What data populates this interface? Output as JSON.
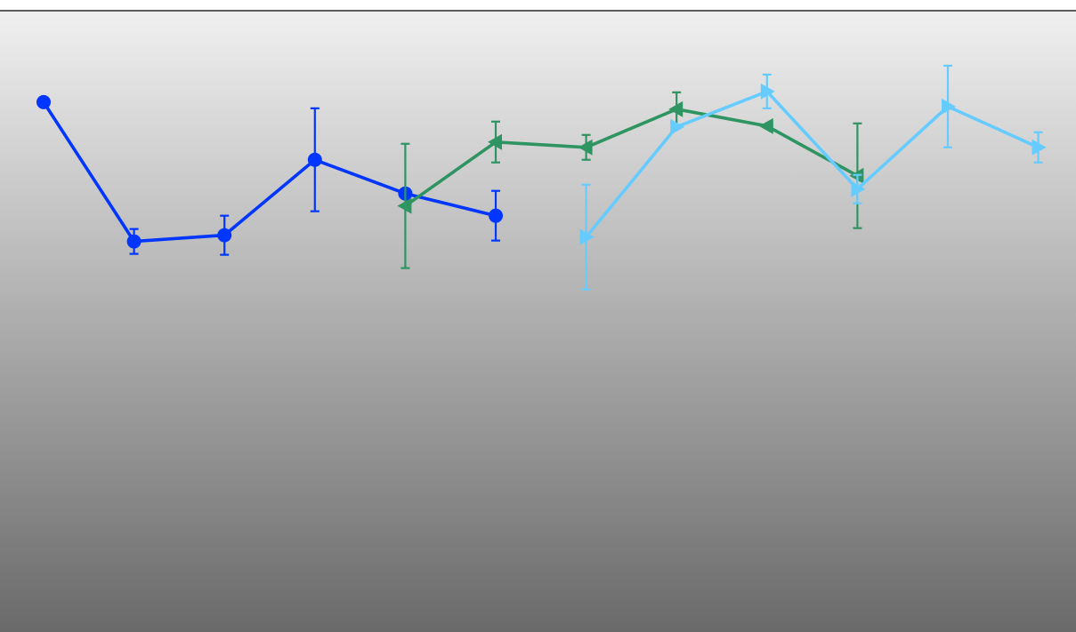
{
  "chart_data": {
    "type": "line",
    "title": "",
    "xlabel": "",
    "ylabel": "",
    "x": [
      0,
      1,
      2,
      3,
      4,
      5,
      6,
      7,
      8,
      9,
      10,
      11
    ],
    "xlim": [
      0,
      11.3
    ],
    "ylim": [
      0,
      700
    ],
    "grid": false,
    "legend": "none",
    "background": {
      "top": "#f0f0f0",
      "bottom": "#6a6a6a"
    },
    "series": [
      {
        "color": "#0036ff",
        "marker": "circle",
        "points": [
          {
            "x": 0,
            "y": 597,
            "err": null
          },
          {
            "x": 1,
            "y": 440,
            "err": 14
          },
          {
            "x": 2,
            "y": 447,
            "err": 22
          },
          {
            "x": 3,
            "y": 532,
            "err": 58
          },
          {
            "x": 4,
            "y": 494,
            "err": null
          },
          {
            "x": 5,
            "y": 469,
            "err": 28
          }
        ]
      },
      {
        "color": "#2e9461",
        "marker": "triangle-left",
        "points": [
          {
            "x": 4,
            "y": 480,
            "err": 70
          },
          {
            "x": 5,
            "y": 552,
            "err": 23
          },
          {
            "x": 6,
            "y": 546,
            "err": 14
          },
          {
            "x": 7,
            "y": 589,
            "err": 19
          },
          {
            "x": 8,
            "y": 570,
            "err": null
          },
          {
            "x": 9,
            "y": 514,
            "err": 59
          }
        ]
      },
      {
        "color": "#66ccff",
        "marker": "triangle-right",
        "points": [
          {
            "x": 6,
            "y": 445,
            "err": 59
          },
          {
            "x": 7,
            "y": 569,
            "err": null
          },
          {
            "x": 8,
            "y": 609,
            "err": 19
          },
          {
            "x": 9,
            "y": 499,
            "err": 16
          },
          {
            "x": 10,
            "y": 592,
            "err": 46
          },
          {
            "x": 11,
            "y": 546,
            "err": 17
          }
        ]
      }
    ]
  }
}
